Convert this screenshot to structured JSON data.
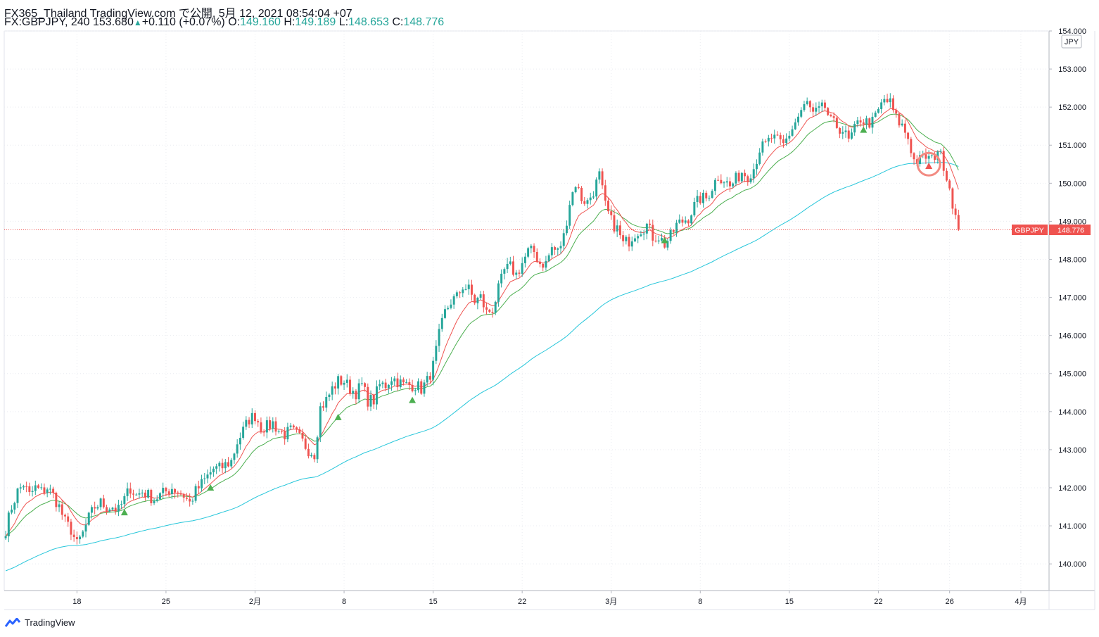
{
  "header": {
    "title": "FX365_Thailand TradingView.com で公開, 5月 12, 2021 08:54:04 +07",
    "symbol": "FX:GBPJPY, 240",
    "last": "153.680",
    "arrow": "▲",
    "change": "+0.110 (+0.07%)",
    "o_label": "O:",
    "o": "149.160",
    "h_label": "H:",
    "h": "149.189",
    "l_label": "L:",
    "l": "148.653",
    "c_label": "C:",
    "c": "148.776"
  },
  "price_axis": {
    "currency": "JPY",
    "current_label": "GBPJPY",
    "current_value": "148.776"
  },
  "brand": "TradingView",
  "colors": {
    "up": "#26a69a",
    "down": "#ef5350",
    "ema_fast": "#ef5350",
    "ema_mid": "#4caf50",
    "ema_slow": "#26c6da",
    "marker": "#4caf50"
  },
  "chart_data": {
    "type": "candlestick",
    "symbol": "GBPJPY",
    "interval": "240",
    "ylim": [
      139.3,
      154.0
    ],
    "y_ticks": [
      140,
      141,
      142,
      143,
      144,
      145,
      146,
      147,
      148,
      149,
      150,
      151,
      152,
      153,
      154
    ],
    "y_tick_labels": [
      "140.000",
      "141.000",
      "142.000",
      "143.000",
      "144.000",
      "145.000",
      "146.000",
      "147.000",
      "148.000",
      "149.000",
      "150.000",
      "151.000",
      "152.000",
      "153.000",
      "154.000"
    ],
    "x_ticks": [
      {
        "label": "18",
        "bar": 24
      },
      {
        "label": "25",
        "bar": 54
      },
      {
        "label": "2月",
        "bar": 84
      },
      {
        "label": "8",
        "bar": 114
      },
      {
        "label": "15",
        "bar": 144
      },
      {
        "label": "22",
        "bar": 174
      },
      {
        "label": "3月",
        "bar": 204
      },
      {
        "label": "8",
        "bar": 234
      },
      {
        "label": "15",
        "bar": 264
      },
      {
        "label": "22",
        "bar": 294
      },
      {
        "label": "26",
        "bar": 318
      },
      {
        "label": "4月",
        "bar": 342
      }
    ],
    "total_bars": 352,
    "anchors": [
      [
        0,
        140.9
      ],
      [
        2,
        141.5
      ],
      [
        4,
        141.9
      ],
      [
        6,
        142.1
      ],
      [
        8,
        141.8
      ],
      [
        10,
        142.0
      ],
      [
        12,
        141.9
      ],
      [
        14,
        142.0
      ],
      [
        16,
        141.8
      ],
      [
        18,
        141.5
      ],
      [
        20,
        141.1
      ],
      [
        22,
        140.9
      ],
      [
        24,
        140.5
      ],
      [
        26,
        140.8
      ],
      [
        28,
        141.2
      ],
      [
        30,
        141.5
      ],
      [
        32,
        141.6
      ],
      [
        34,
        141.5
      ],
      [
        36,
        141.5
      ],
      [
        38,
        141.4
      ],
      [
        40,
        141.7
      ],
      [
        42,
        142.0
      ],
      [
        44,
        141.8
      ],
      [
        46,
        141.9
      ],
      [
        48,
        141.8
      ],
      [
        50,
        141.7
      ],
      [
        52,
        141.8
      ],
      [
        54,
        141.9
      ],
      [
        56,
        142.0
      ],
      [
        58,
        141.9
      ],
      [
        60,
        141.8
      ],
      [
        62,
        141.6
      ],
      [
        64,
        141.9
      ],
      [
        66,
        142.1
      ],
      [
        68,
        142.3
      ],
      [
        70,
        142.5
      ],
      [
        72,
        142.5
      ],
      [
        74,
        142.6
      ],
      [
        76,
        142.7
      ],
      [
        78,
        143.2
      ],
      [
        80,
        143.5
      ],
      [
        82,
        143.8
      ],
      [
        84,
        143.9
      ],
      [
        86,
        143.6
      ],
      [
        88,
        143.6
      ],
      [
        90,
        143.7
      ],
      [
        92,
        143.5
      ],
      [
        94,
        143.4
      ],
      [
        96,
        143.5
      ],
      [
        98,
        143.4
      ],
      [
        100,
        143.2
      ],
      [
        102,
        143.0
      ],
      [
        104,
        142.9
      ],
      [
        106,
        144.1
      ],
      [
        108,
        144.3
      ],
      [
        110,
        144.6
      ],
      [
        112,
        144.8
      ],
      [
        114,
        144.8
      ],
      [
        116,
        144.6
      ],
      [
        118,
        144.5
      ],
      [
        120,
        144.7
      ],
      [
        122,
        144.3
      ],
      [
        124,
        144.3
      ],
      [
        126,
        144.7
      ],
      [
        128,
        144.7
      ],
      [
        130,
        144.9
      ],
      [
        132,
        144.8
      ],
      [
        134,
        144.7
      ],
      [
        136,
        144.7
      ],
      [
        138,
        144.7
      ],
      [
        140,
        144.6
      ],
      [
        142,
        144.8
      ],
      [
        144,
        145.2
      ],
      [
        146,
        146.0
      ],
      [
        148,
        146.6
      ],
      [
        150,
        146.9
      ],
      [
        152,
        147.0
      ],
      [
        154,
        147.3
      ],
      [
        156,
        147.2
      ],
      [
        158,
        146.9
      ],
      [
        160,
        147.0
      ],
      [
        162,
        146.6
      ],
      [
        164,
        146.7
      ],
      [
        166,
        147.2
      ],
      [
        168,
        147.7
      ],
      [
        170,
        147.8
      ],
      [
        172,
        147.6
      ],
      [
        174,
        147.9
      ],
      [
        176,
        148.2
      ],
      [
        178,
        148.2
      ],
      [
        180,
        147.9
      ],
      [
        182,
        147.9
      ],
      [
        184,
        148.3
      ],
      [
        186,
        148.2
      ],
      [
        188,
        148.6
      ],
      [
        190,
        149.5
      ],
      [
        192,
        150.0
      ],
      [
        194,
        149.6
      ],
      [
        196,
        149.5
      ],
      [
        198,
        149.8
      ],
      [
        200,
        150.2
      ],
      [
        202,
        149.4
      ],
      [
        204,
        149.0
      ],
      [
        206,
        148.8
      ],
      [
        208,
        148.4
      ],
      [
        210,
        148.5
      ],
      [
        212,
        148.7
      ],
      [
        214,
        148.8
      ],
      [
        216,
        148.9
      ],
      [
        218,
        148.6
      ],
      [
        220,
        148.6
      ],
      [
        222,
        148.4
      ],
      [
        224,
        148.6
      ],
      [
        226,
        148.9
      ],
      [
        228,
        149.0
      ],
      [
        230,
        149.1
      ],
      [
        232,
        149.4
      ],
      [
        234,
        149.6
      ],
      [
        236,
        149.6
      ],
      [
        238,
        149.9
      ],
      [
        240,
        150.2
      ],
      [
        242,
        150.1
      ],
      [
        244,
        149.9
      ],
      [
        246,
        150.1
      ],
      [
        248,
        150.3
      ],
      [
        250,
        150.2
      ],
      [
        252,
        150.4
      ],
      [
        254,
        150.9
      ],
      [
        256,
        151.0
      ],
      [
        258,
        151.2
      ],
      [
        260,
        151.1
      ],
      [
        262,
        151.0
      ],
      [
        264,
        151.3
      ],
      [
        266,
        151.6
      ],
      [
        268,
        151.9
      ],
      [
        270,
        152.1
      ],
      [
        272,
        151.8
      ],
      [
        274,
        151.9
      ],
      [
        276,
        152.0
      ],
      [
        278,
        151.6
      ],
      [
        280,
        151.5
      ],
      [
        282,
        151.4
      ],
      [
        284,
        151.1
      ],
      [
        286,
        151.4
      ],
      [
        288,
        151.7
      ],
      [
        290,
        151.6
      ],
      [
        292,
        151.6
      ],
      [
        294,
        151.9
      ],
      [
        296,
        152.2
      ],
      [
        298,
        152.1
      ],
      [
        300,
        151.7
      ],
      [
        302,
        151.5
      ],
      [
        304,
        151.2
      ],
      [
        306,
        150.6
      ],
      [
        308,
        150.6
      ],
      [
        310,
        150.7
      ],
      [
        312,
        150.6
      ],
      [
        314,
        150.9
      ],
      [
        316,
        150.5
      ],
      [
        318,
        149.9
      ],
      [
        320,
        149.1
      ],
      [
        321,
        148.776
      ]
    ],
    "ema_fast_period": 10,
    "ema_mid_period": 20,
    "ema_slow_period": 100,
    "buy_markers": [
      [
        40,
        141.35
      ],
      [
        69,
        142.0
      ],
      [
        112,
        143.85
      ],
      [
        137,
        144.3
      ],
      [
        222,
        148.5
      ],
      [
        289,
        151.4
      ]
    ],
    "sell_marker": [
      311,
      150.45
    ],
    "highlight_circle": [
      311,
      150.5
    ],
    "current_price": 148.776
  }
}
